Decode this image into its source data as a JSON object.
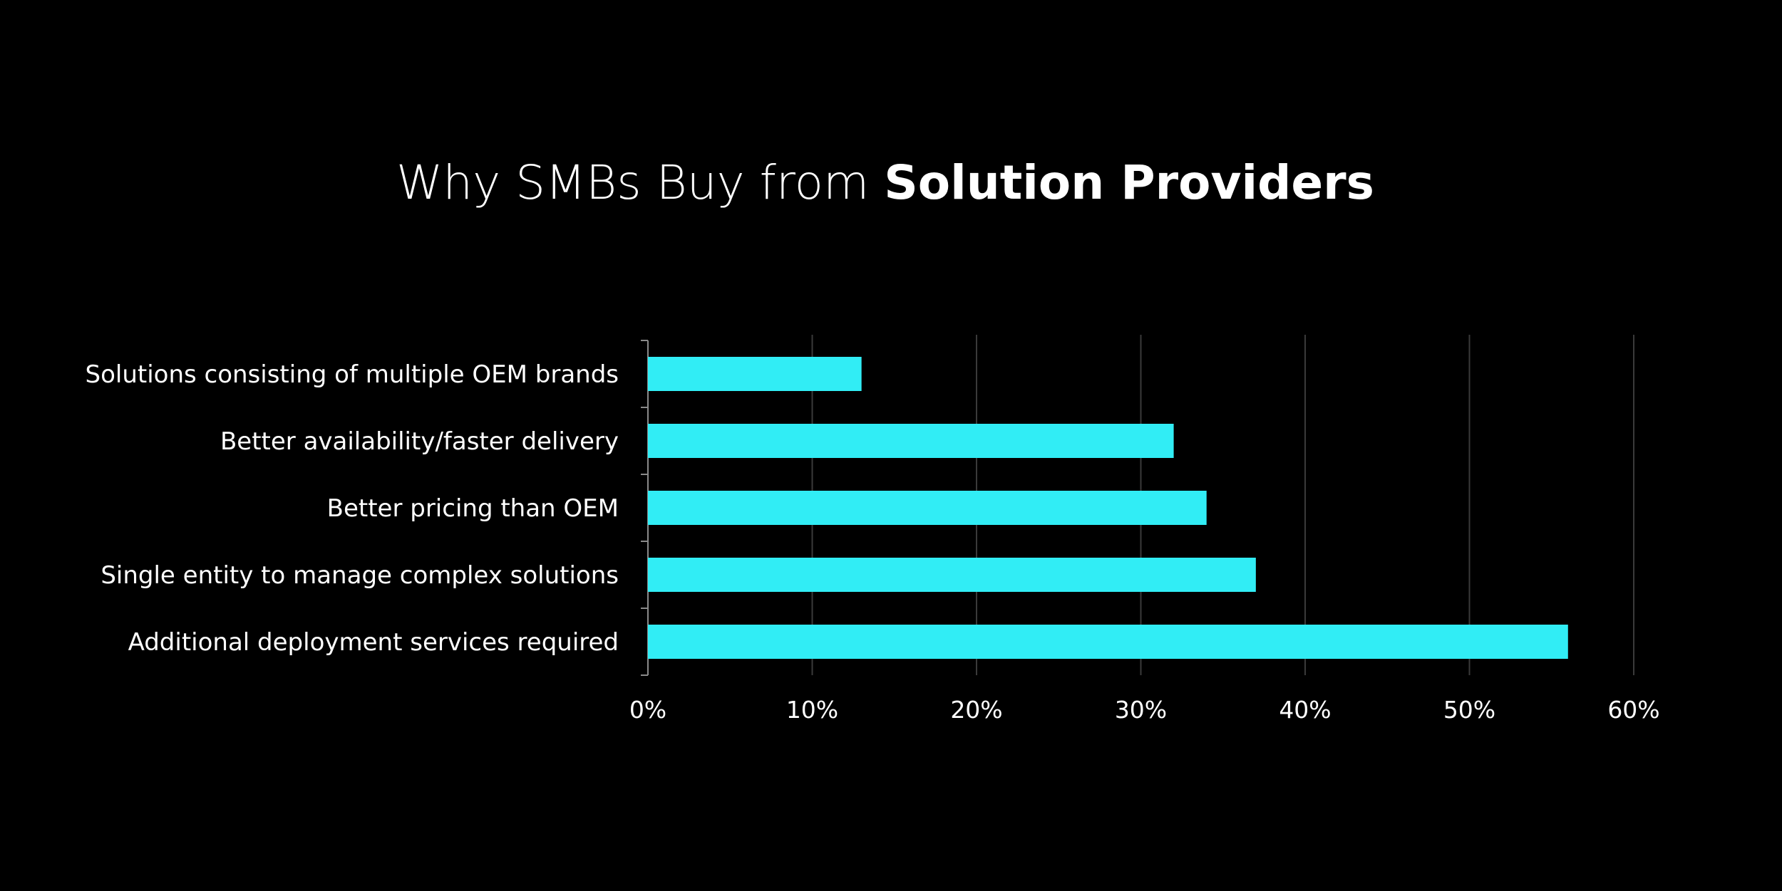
{
  "chart_data": {
    "type": "bar",
    "orientation": "horizontal",
    "title": {
      "prefix": "Why SMBs Buy from ",
      "emphasis": "Solution Providers"
    },
    "categories": [
      "Solutions consisting of multiple OEM brands",
      "Better availability/faster delivery",
      "Better pricing than OEM",
      "Single entity to manage complex solutions",
      "Additional deployment services required"
    ],
    "values": [
      13,
      32,
      34,
      37,
      56
    ],
    "xlim": [
      0,
      60
    ],
    "xticks": [
      0,
      10,
      20,
      30,
      40,
      50,
      60
    ],
    "tick_suffix": "%",
    "grid": true,
    "legend": "none",
    "colors": {
      "bar": "#31EDF5",
      "background": "#000000",
      "text": "#FFFFFF",
      "grid": "#3A3A3A",
      "axis": "#8A8A8A"
    }
  }
}
